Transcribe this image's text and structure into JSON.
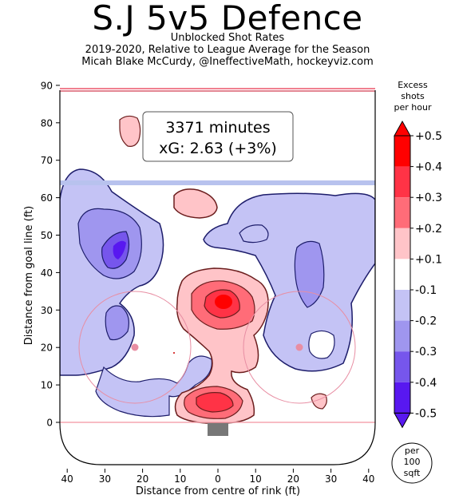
{
  "header": {
    "title": "S.J 5v5 Defence",
    "subtitle": "Unblocked Shot Rates",
    "season_line": "2019-2020, Relative to League Average for the Season",
    "credit_line": "Micah Blake McCurdy, @IneffectiveMath, hockeyviz.com"
  },
  "infobox": {
    "minutes": "3371 minutes",
    "xg": "xG: 2.63 (+3%)"
  },
  "colorbar": {
    "title_lines": [
      "Excess",
      "shots",
      "per hour"
    ],
    "labels": [
      "+0.5",
      "+0.4",
      "+0.3",
      "+0.2",
      "+0.1",
      "-0.1",
      "-0.2",
      "-0.3",
      "-0.4",
      "-0.5"
    ],
    "colors": [
      "#ff0000",
      "#ff3346",
      "#ff6c78",
      "#ffc4c8",
      "#ffffff",
      "#c4c3f5",
      "#9f96ef",
      "#7656ec",
      "#5818f0"
    ],
    "unit_lines": [
      "per",
      "100",
      "sqft"
    ]
  },
  "chart_data": {
    "type": "heatmap",
    "title": "S.J 5v5 Defence",
    "xlabel": "Distance from centre of rink (ft)",
    "ylabel": "Distance from goal line (ft)",
    "xlim": [
      -42,
      42
    ],
    "ylim": [
      -10,
      90
    ],
    "x_ticks": [
      40,
      30,
      20,
      10,
      0,
      10,
      20,
      30,
      40
    ],
    "x_tick_values": [
      -40,
      -30,
      -20,
      -10,
      0,
      10,
      20,
      30,
      40
    ],
    "y_ticks": [
      0,
      10,
      20,
      30,
      40,
      50,
      60,
      70,
      80,
      90
    ],
    "colorscale_range": [
      -0.5,
      0.5
    ],
    "colorscale_unit": "Excess shots per hour per 100 sqft",
    "regions": [
      {
        "zone": "slot",
        "x": 2,
        "y": 32,
        "level": 0.5
      },
      {
        "zone": "slot-outer",
        "x": 2,
        "y": 30,
        "level": 0.3
      },
      {
        "zone": "crease",
        "x": 2,
        "y": 5,
        "level": 0.3
      },
      {
        "zone": "left-point",
        "x": -27,
        "y": 65,
        "level": 0.1
      },
      {
        "zone": "high-left",
        "x": -25,
        "y": 80,
        "level": 0.1
      },
      {
        "zone": "low-right",
        "x": 27,
        "y": 6,
        "level": 0.1
      },
      {
        "zone": "left-wing",
        "x": -27,
        "y": 46,
        "level": -0.4
      },
      {
        "zone": "left-circle",
        "x": -27,
        "y": 26,
        "level": -0.3
      },
      {
        "zone": "right-wing",
        "x": 26,
        "y": 42,
        "level": -0.2
      },
      {
        "zone": "right-point",
        "x": 20,
        "y": 58,
        "level": -0.1
      }
    ]
  }
}
